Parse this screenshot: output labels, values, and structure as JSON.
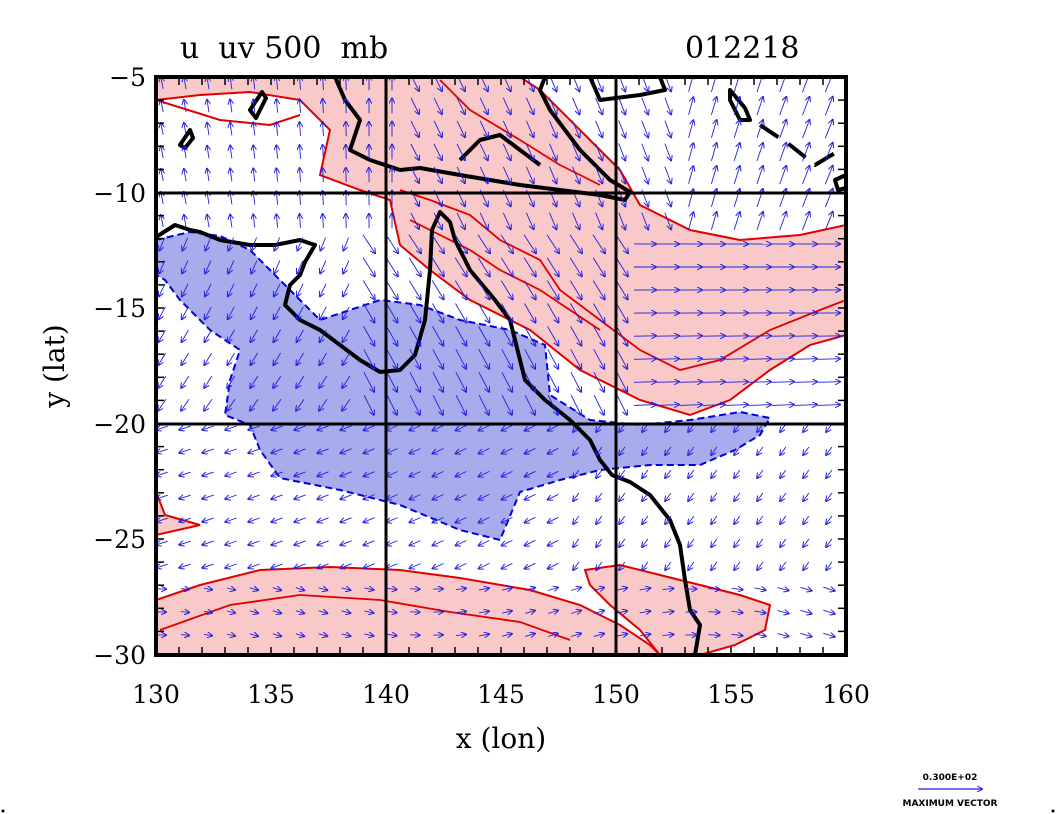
{
  "title_left": "u  uv 500  mb",
  "title_right": "012218",
  "xlabel": "x (lon)",
  "ylabel": "y (lat)",
  "x_ticks": [
    "130",
    "135",
    "140",
    "145",
    "150",
    "155",
    "160"
  ],
  "y_ticks": [
    "−5",
    "−10",
    "−15",
    "−20",
    "−25",
    "−30"
  ],
  "reference_vector": {
    "magnitude_label": "0.300E+02",
    "caption": "MAXIMUM VECTOR"
  },
  "colors": {
    "positive_fill": "#f9c8c8",
    "positive_contour": "#e00000",
    "negative_fill": "#a8acec",
    "negative_contour": "#0000e0",
    "coastline": "#000000",
    "vector": "#1f1fe0"
  },
  "chart_data": {
    "type": "map",
    "field": "u",
    "vector_field": "uv",
    "level": "500 mb",
    "time": "012218",
    "xlim": [
      130,
      160
    ],
    "ylim": [
      -30,
      -5
    ],
    "grid_lines_lon": [
      140,
      150
    ],
    "grid_lines_lat": [
      -10,
      -20
    ]
  }
}
